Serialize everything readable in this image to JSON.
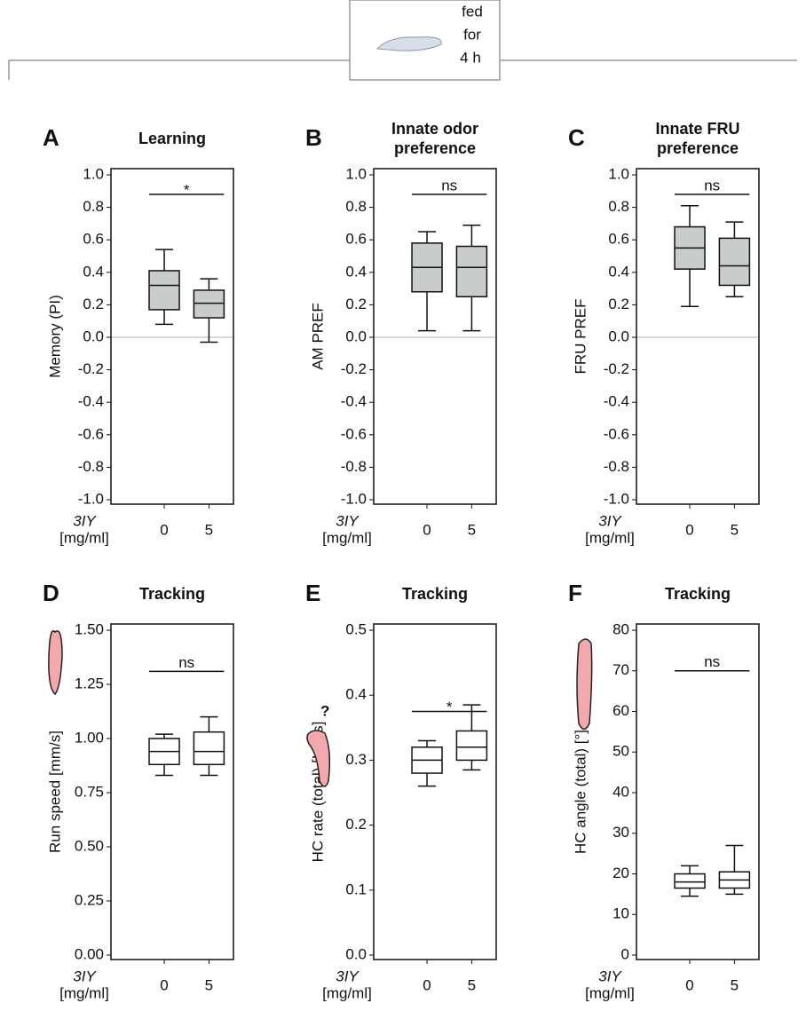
{
  "header": {
    "lines": [
      "fed",
      "for",
      "4 h"
    ]
  },
  "chart_data": [
    {
      "type": "box",
      "panel": "A",
      "title": [
        "Learning"
      ],
      "ylabel": "Memory (PI)",
      "xlabel": [
        "3IY",
        "[mg/ml]"
      ],
      "categories": [
        "0",
        "5"
      ],
      "box_color": "#c8cccc",
      "zero_line": true,
      "boxes": [
        {
          "min": 0.08,
          "q1": 0.17,
          "median": 0.32,
          "q3": 0.41,
          "max": 0.54
        },
        {
          "min": -0.03,
          "q1": 0.12,
          "median": 0.21,
          "q3": 0.29,
          "max": 0.36
        }
      ],
      "annotation": {
        "label": "*",
        "y": 0.88
      },
      "ylim": [
        -1,
        1
      ],
      "yticks": [
        {
          "value": 1,
          "label": "1.0"
        },
        0.8,
        0.6,
        0.4,
        0.2,
        {
          "value": 0,
          "label": "0.0"
        },
        -0.2,
        -0.4,
        -0.6,
        -0.8,
        {
          "value": -1,
          "label": "-1.0"
        }
      ]
    },
    {
      "type": "box",
      "panel": "B",
      "title": [
        "Innate odor",
        "preference"
      ],
      "ylabel": "AM PREF",
      "xlabel": [
        "3IY",
        "[mg/ml]"
      ],
      "categories": [
        "0",
        "5"
      ],
      "box_color": "#c8cccc",
      "zero_line": true,
      "boxes": [
        {
          "min": 0.04,
          "q1": 0.28,
          "median": 0.43,
          "q3": 0.58,
          "max": 0.65
        },
        {
          "min": 0.04,
          "q1": 0.25,
          "median": 0.43,
          "q3": 0.56,
          "max": 0.69
        }
      ],
      "annotation": {
        "label": "ns",
        "y": 0.88
      },
      "ylim": [
        -1,
        1
      ],
      "yticks": [
        {
          "value": 1,
          "label": "1.0"
        },
        0.8,
        0.6,
        0.4,
        0.2,
        {
          "value": 0,
          "label": "0.0"
        },
        -0.2,
        -0.4,
        -0.6,
        -0.8,
        {
          "value": -1,
          "label": "-1.0"
        }
      ]
    },
    {
      "type": "box",
      "panel": "C",
      "title": [
        "Innate FRU",
        "preference"
      ],
      "ylabel": "FRU PREF",
      "xlabel": [
        "3IY",
        "[mg/ml]"
      ],
      "categories": [
        "0",
        "5"
      ],
      "box_color": "#c8cccc",
      "zero_line": true,
      "boxes": [
        {
          "min": 0.19,
          "q1": 0.42,
          "median": 0.55,
          "q3": 0.68,
          "max": 0.81
        },
        {
          "min": 0.25,
          "q1": 0.32,
          "median": 0.44,
          "q3": 0.61,
          "max": 0.71
        }
      ],
      "annotation": {
        "label": "ns",
        "y": 0.88
      },
      "ylim": [
        -1,
        1
      ],
      "yticks": [
        {
          "value": 1,
          "label": "1.0"
        },
        0.8,
        0.6,
        0.4,
        0.2,
        {
          "value": 0,
          "label": "0.0"
        },
        -0.2,
        -0.4,
        -0.6,
        -0.8,
        {
          "value": -1,
          "label": "-1.0"
        }
      ]
    },
    {
      "type": "box",
      "panel": "D",
      "title": [
        "Tracking"
      ],
      "ylabel": "Run speed [mm/s]",
      "xlabel": [
        "3IY",
        "[mg/ml]"
      ],
      "categories": [
        "0",
        "5"
      ],
      "box_color": "#ffffff",
      "zero_line": false,
      "boxes": [
        {
          "min": 0.83,
          "q1": 0.88,
          "median": 0.94,
          "q3": 1.0,
          "max": 1.02
        },
        {
          "min": 0.83,
          "q1": 0.88,
          "median": 0.94,
          "q3": 1.03,
          "max": 1.1
        }
      ],
      "annotation": {
        "label": "ns",
        "y": 1.31
      },
      "ylim": [
        0,
        1.5
      ],
      "yticks": [
        {
          "value": 0,
          "label": "0.00"
        },
        0.25,
        {
          "value": 0.5,
          "label": "0.50"
        },
        0.75,
        {
          "value": 1,
          "label": "1.00"
        },
        1.25,
        {
          "value": 1.5,
          "label": "1.50"
        }
      ]
    },
    {
      "type": "box",
      "panel": "E",
      "title": [
        "Tracking"
      ],
      "ylabel": "HC rate (total) [HC/s]",
      "xlabel": [
        "3IY",
        "[mg/ml]"
      ],
      "categories": [
        "0",
        "5"
      ],
      "box_color": "#ffffff",
      "zero_line": false,
      "icon_text": "?",
      "boxes": [
        {
          "min": 0.26,
          "q1": 0.28,
          "median": 0.3,
          "q3": 0.32,
          "max": 0.33
        },
        {
          "min": 0.285,
          "q1": 0.3,
          "median": 0.32,
          "q3": 0.345,
          "max": 0.385
        }
      ],
      "annotation": {
        "label": "*",
        "y": 0.375
      },
      "ylim": [
        0,
        0.5
      ],
      "yticks": [
        {
          "value": 0,
          "label": "0.0"
        },
        0.1,
        0.2,
        0.3,
        0.4,
        0.5
      ]
    },
    {
      "type": "box",
      "panel": "F",
      "title": [
        "Tracking"
      ],
      "ylabel": "HC angle (total) [°]",
      "xlabel": [
        "3IY",
        "[mg/ml]"
      ],
      "categories": [
        "0",
        "5"
      ],
      "box_color": "#ffffff",
      "zero_line": false,
      "boxes": [
        {
          "min": 14.5,
          "q1": 16.5,
          "median": 18,
          "q3": 20,
          "max": 22
        },
        {
          "min": 15,
          "q1": 16.5,
          "median": 18.5,
          "q3": 20.5,
          "max": 27
        }
      ],
      "annotation": {
        "label": "ns",
        "y": 70
      },
      "ylim": [
        0,
        80
      ],
      "yticks": [
        0,
        10,
        20,
        30,
        40,
        50,
        60,
        70,
        80
      ]
    }
  ]
}
